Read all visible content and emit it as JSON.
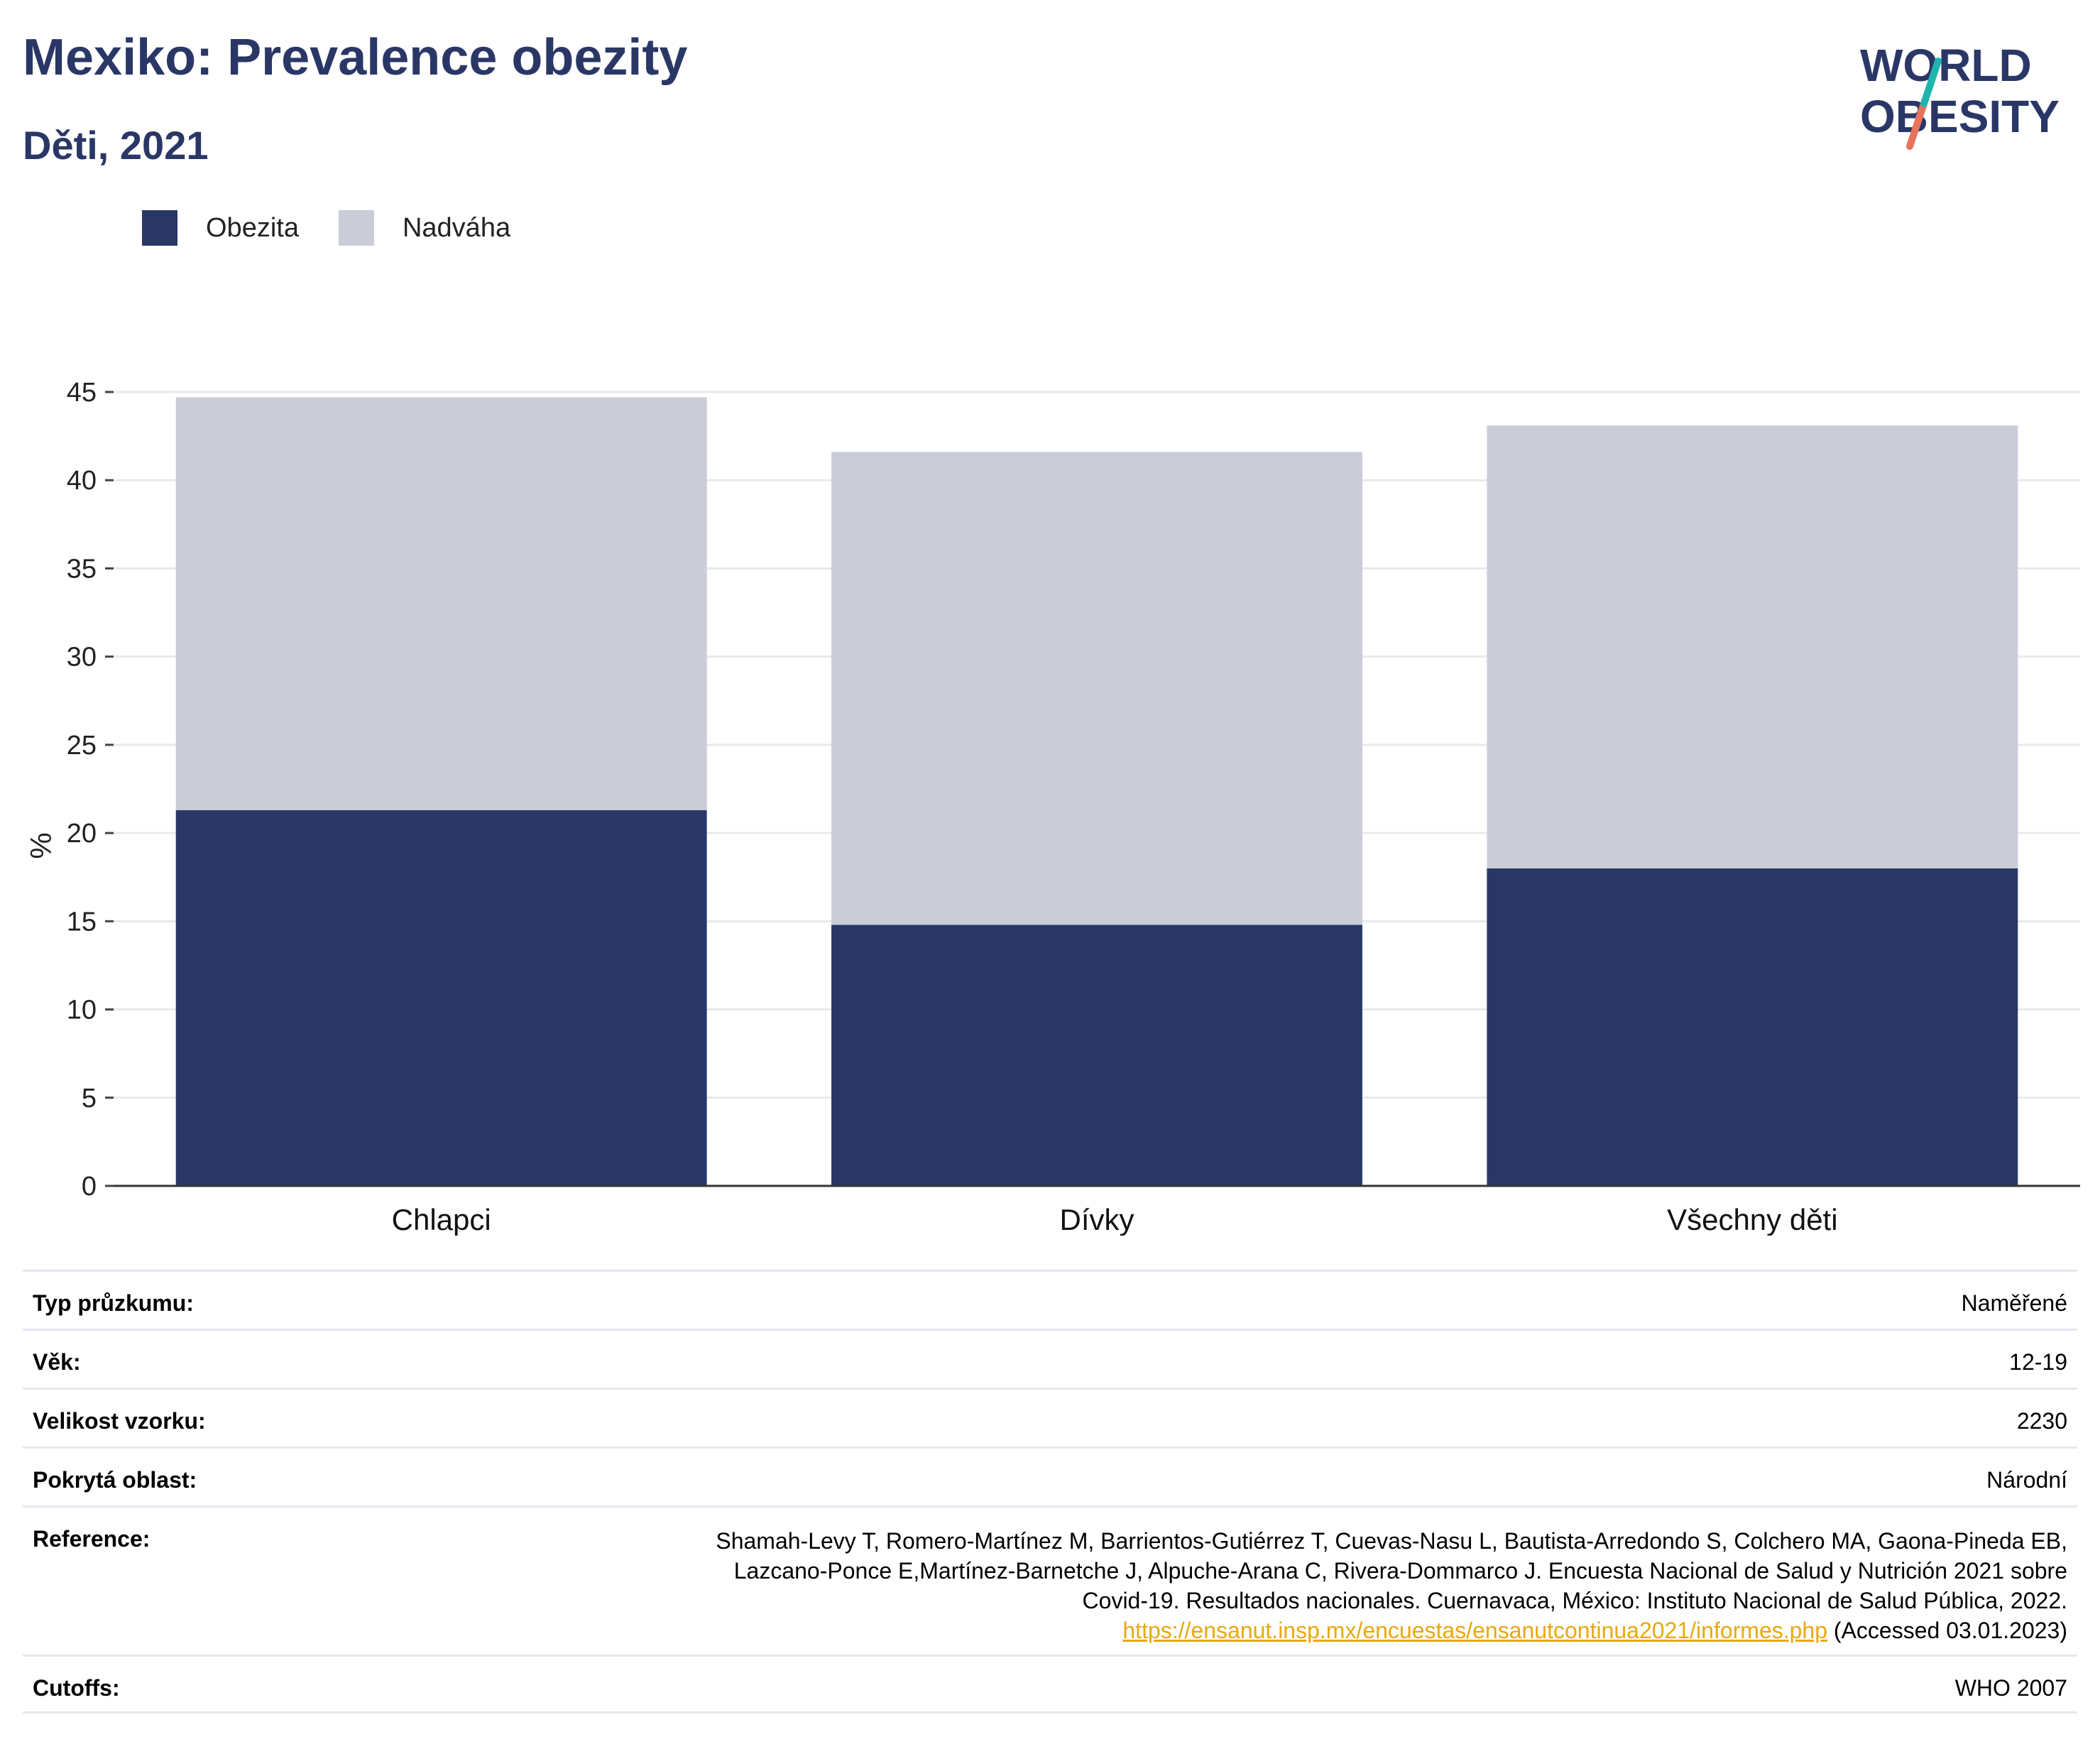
{
  "header": {
    "title": "Mexiko: Prevalence obezity",
    "subtitle": "Děti, 2021",
    "logo_line1": "WORLD",
    "logo_line2": "OBESITY"
  },
  "colors": {
    "obesity": "#2a3766",
    "overweight": "#cacdd8",
    "accent_teal": "#1fb5ad",
    "accent_coral": "#e8735c"
  },
  "legend": {
    "items": [
      {
        "label": "Obezita",
        "color": "#2a3766"
      },
      {
        "label": "Nadváha",
        "color": "#cacdd8"
      }
    ]
  },
  "chart_data": {
    "type": "bar",
    "stacked": true,
    "categories": [
      "Chlapci",
      "Dívky",
      "Všechny děti"
    ],
    "series": [
      {
        "name": "Obezita",
        "values": [
          21.3,
          14.8,
          18.0
        ]
      },
      {
        "name": "Nadváha",
        "values": [
          23.4,
          26.8,
          25.1
        ]
      }
    ],
    "ylabel": "%",
    "ylim": [
      0,
      45
    ],
    "yticks": [
      0,
      5,
      10,
      15,
      20,
      25,
      30,
      35,
      40,
      45
    ],
    "grid": true,
    "legend_position": "top-left"
  },
  "info": {
    "survey_type": {
      "label": "Typ průzkumu:",
      "value": "Naměřené"
    },
    "age": {
      "label": "Věk:",
      "value": "12-19"
    },
    "sample_size": {
      "label": "Velikost vzorku:",
      "value": "2230"
    },
    "area": {
      "label": "Pokrytá oblast:",
      "value": "Národní"
    },
    "reference": {
      "label": "Reference:",
      "line1": "Shamah-Levy T, Romero-Martínez M, Barrientos-Gutiérrez T, Cuevas-Nasu L, Bautista-Arredondo S, Colchero MA, Gaona-Pineda EB,",
      "line2": "Lazcano-Ponce E,Martínez-Barnetche J, Alpuche-Arana C, Rivera-Dommarco J. Encuesta Nacional de Salud y Nutrición 2021 sobre",
      "line3": "Covid-19. Resultados nacionales. Cuernavaca, México: Instituto Nacional de Salud Pública, 2022.",
      "link": "https://ensanut.insp.mx/encuestas/ensanutcontinua2021/informes.php",
      "accessed": " (Accessed 03.01.2023)"
    },
    "cutoffs": {
      "label": "Cutoffs:",
      "value": "WHO 2007"
    }
  }
}
